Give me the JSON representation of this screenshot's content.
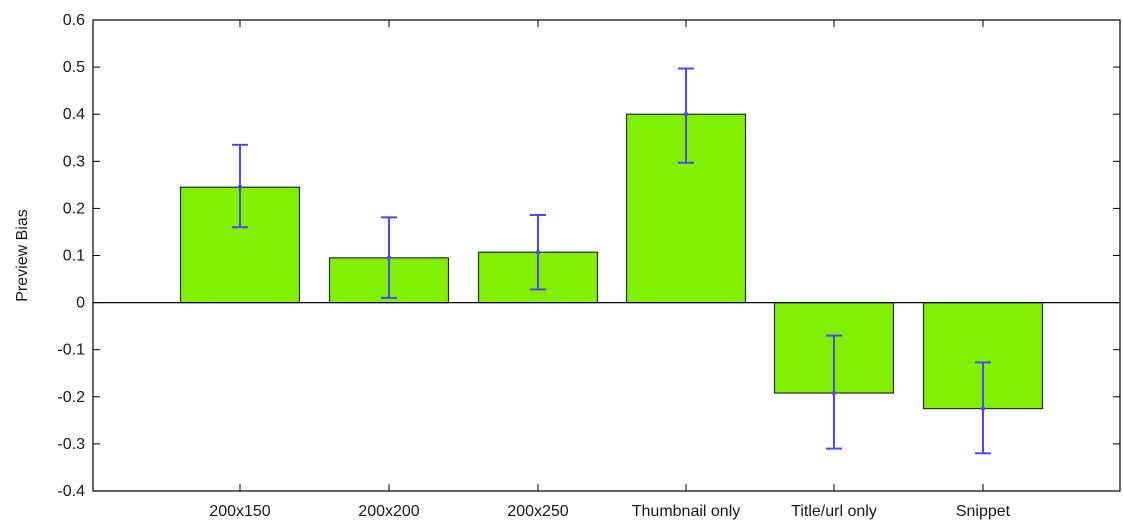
{
  "chart_data": {
    "type": "bar",
    "title": "",
    "xlabel": "",
    "ylabel": "Preview Bias",
    "categories": [
      "200x150",
      "200x200",
      "200x250",
      "Thumbnail only",
      "Title/url only",
      "Snippet"
    ],
    "values": [
      0.245,
      0.095,
      0.107,
      0.4,
      -0.192,
      -0.225
    ],
    "error_low": [
      0.16,
      0.01,
      0.028,
      0.297,
      -0.31,
      -0.32
    ],
    "error_high": [
      0.335,
      0.181,
      0.186,
      0.497,
      -0.07,
      -0.127
    ],
    "ylim": [
      -0.4,
      0.6
    ],
    "yticks": [
      0.6,
      0.5,
      0.4,
      0.3,
      0.2,
      0.1,
      0,
      -0.1,
      -0.2,
      -0.3,
      -0.4
    ],
    "ytick_labels": [
      "0.6",
      "0.5",
      "0.4",
      "0.3",
      "0.2",
      "0.1",
      "0",
      "-0.1",
      "-0.2",
      "-0.3",
      "-0.4"
    ],
    "grid": false,
    "legend": "none",
    "colors": {
      "bar_fill": "#80f000",
      "bar_stroke": "#2a2a2a",
      "error_bar": "#4a4aff",
      "axis": "#000000"
    }
  }
}
